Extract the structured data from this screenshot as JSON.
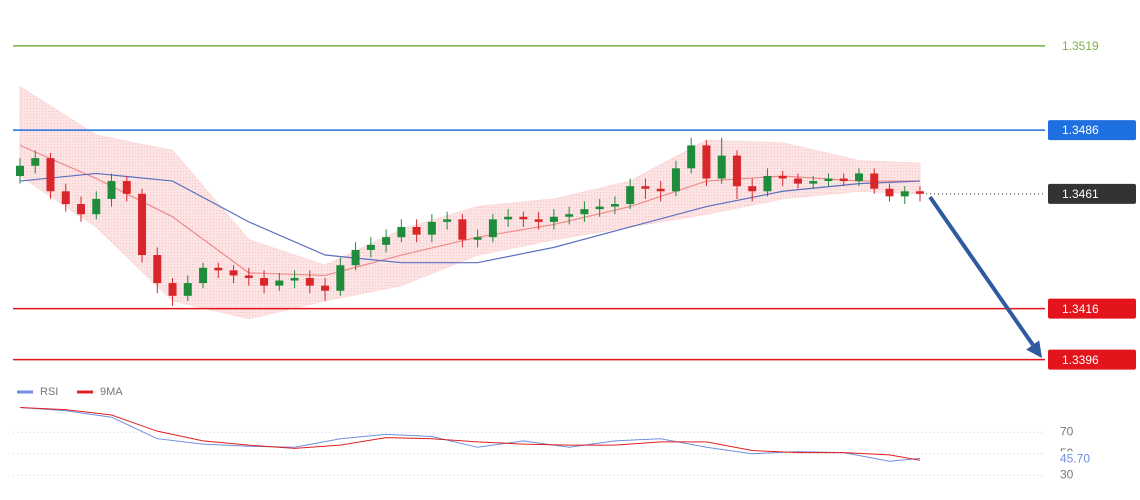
{
  "chart_data": [
    {
      "type": "candlestick",
      "ylim": [
        1.3388,
        1.3537
      ],
      "open": [
        1.3468,
        1.3472,
        1.3475,
        1.3462,
        1.3457,
        1.3453,
        1.3459,
        1.3466,
        1.3461,
        1.3437,
        1.3426,
        1.3421,
        1.3426,
        1.3432,
        1.3431,
        1.3429,
        1.3428,
        1.3425,
        1.3427,
        1.3428,
        1.3425,
        1.3423,
        1.3433,
        1.3439,
        1.3441,
        1.3444,
        1.3448,
        1.3445,
        1.345,
        1.3451,
        1.3443,
        1.3444,
        1.3451,
        1.3452,
        1.3451,
        1.345,
        1.3452,
        1.3453,
        1.3455,
        1.3456,
        1.3457,
        1.3464,
        1.3463,
        1.3462,
        1.3471,
        1.348,
        1.3467,
        1.3476,
        1.3464,
        1.3462,
        1.3468,
        1.3467,
        1.3465,
        1.3466,
        1.3467,
        1.3466,
        1.3469,
        1.3463,
        1.346,
        1.3462
      ],
      "high": [
        1.3475,
        1.3478,
        1.3477,
        1.3465,
        1.346,
        1.3462,
        1.3469,
        1.3468,
        1.3463,
        1.344,
        1.3428,
        1.3429,
        1.3434,
        1.3434,
        1.3433,
        1.3432,
        1.3431,
        1.343,
        1.3431,
        1.3431,
        1.3428,
        1.3436,
        1.3442,
        1.3444,
        1.3447,
        1.3451,
        1.3451,
        1.3453,
        1.3454,
        1.3453,
        1.3447,
        1.3453,
        1.3455,
        1.3454,
        1.3454,
        1.3455,
        1.3456,
        1.3458,
        1.3459,
        1.346,
        1.3467,
        1.3467,
        1.3466,
        1.3474,
        1.3483,
        1.3482,
        1.3483,
        1.3478,
        1.3467,
        1.3471,
        1.347,
        1.3469,
        1.3468,
        1.3469,
        1.3469,
        1.3471,
        1.3471,
        1.3465,
        1.3464,
        1.3464
      ],
      "low": [
        1.3465,
        1.3469,
        1.3459,
        1.3454,
        1.345,
        1.3451,
        1.3456,
        1.3458,
        1.3434,
        1.3422,
        1.3417,
        1.3419,
        1.3424,
        1.3428,
        1.3426,
        1.3425,
        1.3422,
        1.3423,
        1.3424,
        1.3422,
        1.3419,
        1.3421,
        1.3431,
        1.3436,
        1.3438,
        1.3442,
        1.3442,
        1.3442,
        1.3447,
        1.344,
        1.344,
        1.3442,
        1.3448,
        1.3448,
        1.3447,
        1.3447,
        1.3449,
        1.345,
        1.3452,
        1.3453,
        1.3455,
        1.3459,
        1.3458,
        1.346,
        1.3469,
        1.3464,
        1.3465,
        1.3459,
        1.3458,
        1.346,
        1.3464,
        1.3463,
        1.3463,
        1.3464,
        1.3464,
        1.3464,
        1.3461,
        1.3458,
        1.3457,
        1.3458
      ],
      "close": [
        1.3472,
        1.3475,
        1.3462,
        1.3457,
        1.3453,
        1.3459,
        1.3466,
        1.3461,
        1.3437,
        1.3426,
        1.3421,
        1.3426,
        1.3432,
        1.3431,
        1.3429,
        1.3428,
        1.3425,
        1.3427,
        1.3428,
        1.3425,
        1.3423,
        1.3433,
        1.3439,
        1.3441,
        1.3444,
        1.3448,
        1.3445,
        1.345,
        1.3451,
        1.3443,
        1.3444,
        1.3451,
        1.3452,
        1.3451,
        1.345,
        1.3452,
        1.3453,
        1.3455,
        1.3456,
        1.3457,
        1.3464,
        1.3463,
        1.3462,
        1.3471,
        1.348,
        1.3467,
        1.3476,
        1.3464,
        1.3462,
        1.3468,
        1.3467,
        1.3465,
        1.3466,
        1.3467,
        1.3466,
        1.3469,
        1.3463,
        1.346,
        1.3462,
        1.3461
      ],
      "up_color": "#1e8c3a",
      "down_color": "#d9262b",
      "overlay_x": [
        0,
        5,
        10,
        15,
        20,
        25,
        30,
        35,
        40,
        45,
        50,
        55,
        59
      ],
      "band": {
        "upper": [
          1.3503,
          1.3484,
          1.3478,
          1.3443,
          1.3433,
          1.3447,
          1.3456,
          1.3459,
          1.3466,
          1.3482,
          1.3481,
          1.3474,
          1.3473
        ],
        "lower": [
          1.3468,
          1.3448,
          1.3419,
          1.3412,
          1.3419,
          1.3425,
          1.3437,
          1.3443,
          1.3448,
          1.3453,
          1.3459,
          1.3462,
          1.3461
        ],
        "color": "#fbd9d9"
      },
      "overlays": [
        {
          "color": "#ef8a8a",
          "values": [
            1.348,
            1.3467,
            1.3452,
            1.343,
            1.3429,
            1.3437,
            1.3444,
            1.3449,
            1.3456,
            1.3466,
            1.3468,
            1.3466,
            1.3466
          ]
        },
        {
          "color": "#5a6fc0",
          "values": [
            1.3466,
            1.3469,
            1.3466,
            1.345,
            1.3437,
            1.3434,
            1.3434,
            1.344,
            1.3448,
            1.3456,
            1.3462,
            1.3465,
            1.3466
          ]
        }
      ],
      "levels": [
        {
          "value": 1.3519,
          "color": "#7cb342",
          "label_style": "text",
          "line_style": "solid"
        },
        {
          "value": 1.3486,
          "color": "#1e6fe0",
          "label_style": "box",
          "line_style": "solid"
        },
        {
          "value": 1.3461,
          "color": "#333333",
          "label_style": "box",
          "line_style": "dotted"
        },
        {
          "value": 1.3416,
          "color": "#e3141b",
          "label_style": "box",
          "line_style": "solid"
        },
        {
          "value": 1.3396,
          "color": "#e3141b",
          "label_style": "box",
          "line_style": "solid"
        }
      ]
    },
    {
      "type": "line",
      "ylim": [
        20,
        100
      ],
      "xlim": [
        0,
        59
      ],
      "yticks": [
        30,
        50,
        70
      ],
      "grid": true,
      "x": [
        0,
        3,
        6,
        9,
        12,
        15,
        18,
        21,
        24,
        27,
        30,
        33,
        36,
        39,
        42,
        45,
        48,
        51,
        54,
        57,
        59
      ],
      "series": [
        {
          "name": "RSI",
          "color": "#6f8fe0",
          "last_label": "45.70",
          "values": [
            93,
            90,
            84,
            64,
            59,
            57,
            56,
            64,
            68,
            66,
            56,
            62,
            56,
            62,
            64,
            56,
            50,
            52,
            51,
            43,
            45.7
          ]
        },
        {
          "name": "9MA",
          "color": "#e02020",
          "values": [
            93,
            91,
            86,
            71,
            62,
            58,
            55,
            58,
            65,
            64,
            61,
            59,
            58,
            58,
            61,
            61,
            53,
            51,
            51,
            49,
            44
          ]
        }
      ]
    }
  ]
}
